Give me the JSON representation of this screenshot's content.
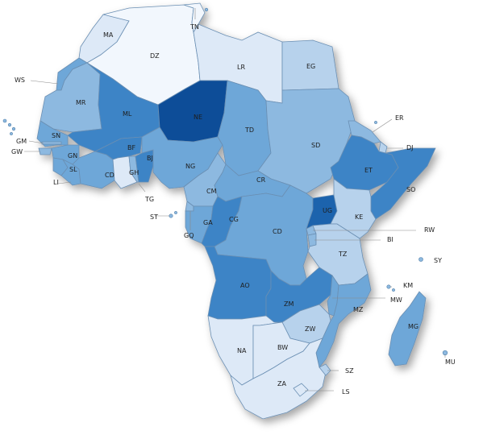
{
  "colors": {
    "level1": "#f2f7fd",
    "level2": "#dde9f7",
    "level3": "#b7d2ec",
    "level4": "#8db9e0",
    "level5": "#6ea7d8",
    "level6": "#3d84c6",
    "level7": "#1f63ad",
    "level8": "#0b4d98",
    "border": "#6b8fb3"
  },
  "countries": [
    {
      "code": "MA",
      "label": "MA",
      "level": 2
    },
    {
      "code": "DZ",
      "label": "DZ",
      "level": 1
    },
    {
      "code": "TN",
      "label": "TN",
      "level": 1
    },
    {
      "code": "LY",
      "label": "LR",
      "level": 2
    },
    {
      "code": "EG",
      "label": "EG",
      "level": 3
    },
    {
      "code": "EH",
      "label": "WS",
      "level": 5
    },
    {
      "code": "MR",
      "label": "MR",
      "level": 4
    },
    {
      "code": "ML",
      "label": "ML",
      "level": 6
    },
    {
      "code": "NE",
      "label": "NE",
      "level": 8
    },
    {
      "code": "TD",
      "label": "TD",
      "level": 5
    },
    {
      "code": "SD",
      "label": "SD",
      "level": 4
    },
    {
      "code": "ER",
      "label": "ER",
      "level": 4
    },
    {
      "code": "DJ",
      "label": "DJ",
      "level": 3
    },
    {
      "code": "ET",
      "label": "ET",
      "level": 6
    },
    {
      "code": "SO",
      "label": "SO",
      "level": 6
    },
    {
      "code": "SN",
      "label": "SN",
      "level": 5
    },
    {
      "code": "GM",
      "label": "GM",
      "level": 4
    },
    {
      "code": "GW",
      "label": "GW",
      "level": 4
    },
    {
      "code": "GN",
      "label": "GN",
      "level": 5
    },
    {
      "code": "SL",
      "label": "SL",
      "level": 5
    },
    {
      "code": "LR",
      "label": "LI",
      "level": 5
    },
    {
      "code": "CI",
      "label": "CD",
      "level": 5
    },
    {
      "code": "BF",
      "label": "BF",
      "level": 6
    },
    {
      "code": "GH",
      "label": "GH",
      "level": 2
    },
    {
      "code": "TG",
      "label": "TG",
      "level": 4
    },
    {
      "code": "BJ",
      "label": "BJ",
      "level": 6
    },
    {
      "code": "NG",
      "label": "NG",
      "level": 5
    },
    {
      "code": "CM",
      "label": "CM",
      "level": 4
    },
    {
      "code": "CF",
      "label": "CR",
      "level": 5
    },
    {
      "code": "GQ",
      "label": "GQ",
      "level": 4
    },
    {
      "code": "GA",
      "label": "GA",
      "level": 5
    },
    {
      "code": "CG",
      "label": "CG",
      "level": 6
    },
    {
      "code": "CD",
      "label": "CD",
      "level": 5
    },
    {
      "code": "UG",
      "label": "UG",
      "level": 7
    },
    {
      "code": "KE",
      "label": "KE",
      "level": 3
    },
    {
      "code": "RW",
      "label": "RW",
      "level": 4
    },
    {
      "code": "BI",
      "label": "BI",
      "level": 4
    },
    {
      "code": "TZ",
      "label": "TZ",
      "level": 3
    },
    {
      "code": "AO",
      "label": "AO",
      "level": 6
    },
    {
      "code": "ZM",
      "label": "ZM",
      "level": 6
    },
    {
      "code": "MW",
      "label": "MW",
      "level": 5
    },
    {
      "code": "MZ",
      "label": "MZ",
      "level": 5
    },
    {
      "code": "ZW",
      "label": "ZW",
      "level": 3
    },
    {
      "code": "NA",
      "label": "NA",
      "level": 2
    },
    {
      "code": "BW",
      "label": "BW",
      "level": 2
    },
    {
      "code": "ZA",
      "label": "ZA",
      "level": 2
    },
    {
      "code": "SZ",
      "label": "SZ",
      "level": 3
    },
    {
      "code": "LS",
      "label": "LS",
      "level": 2
    },
    {
      "code": "MG",
      "label": "MG",
      "level": 5
    },
    {
      "code": "ST",
      "label": "ST",
      "level": 4
    },
    {
      "code": "SC",
      "label": "SY",
      "level": 4
    },
    {
      "code": "KM",
      "label": "KM",
      "level": 4
    },
    {
      "code": "MU",
      "label": "MU",
      "level": 4
    }
  ]
}
